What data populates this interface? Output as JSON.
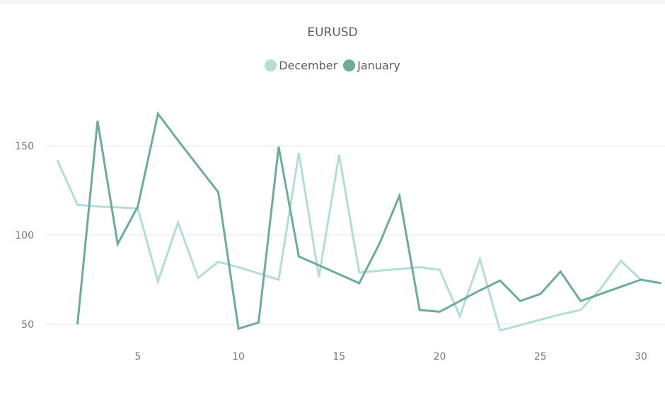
{
  "header": {
    "title": "EURUSD"
  },
  "legend": [
    {
      "label": "December",
      "color": "#b3ddd8"
    },
    {
      "label": "January",
      "color": "#6bac9f"
    }
  ],
  "chart_data": {
    "type": "line",
    "title": "EURUSD",
    "xlabel": "",
    "ylabel": "",
    "x": [
      1,
      2,
      3,
      4,
      5,
      6,
      7,
      8,
      9,
      10,
      11,
      12,
      13,
      14,
      15,
      16,
      17,
      18,
      19,
      20,
      21,
      22,
      23,
      24,
      25,
      26,
      27,
      28,
      29,
      30,
      31
    ],
    "x_ticks": [
      5,
      10,
      15,
      20,
      25,
      30
    ],
    "y_ticks": [
      50,
      100,
      150
    ],
    "xlim": [
      0.5,
      31.2
    ],
    "ylim": [
      40,
      175
    ],
    "grid": true,
    "legend_position": "top",
    "series": [
      {
        "name": "December",
        "color": "#b3ddd8",
        "values": [
          142,
          117,
          116,
          115.5,
          115,
          74,
          107,
          76,
          85,
          82,
          78.5,
          75,
          146,
          76.5,
          145,
          79,
          80,
          81,
          82,
          80.5,
          54.5,
          86.5,
          46.5,
          49.5,
          52.5,
          55.5,
          58,
          70,
          85.5,
          75,
          null
        ]
      },
      {
        "name": "January",
        "color": "#6bac9f",
        "values": [
          null,
          50,
          164,
          95,
          116,
          168,
          153,
          138.5,
          124,
          47.5,
          51,
          149.5,
          88,
          83,
          78,
          73,
          95,
          122,
          58,
          57,
          63,
          69,
          74.5,
          63,
          67,
          79.5,
          63,
          67,
          71,
          75,
          73
        ]
      }
    ]
  }
}
